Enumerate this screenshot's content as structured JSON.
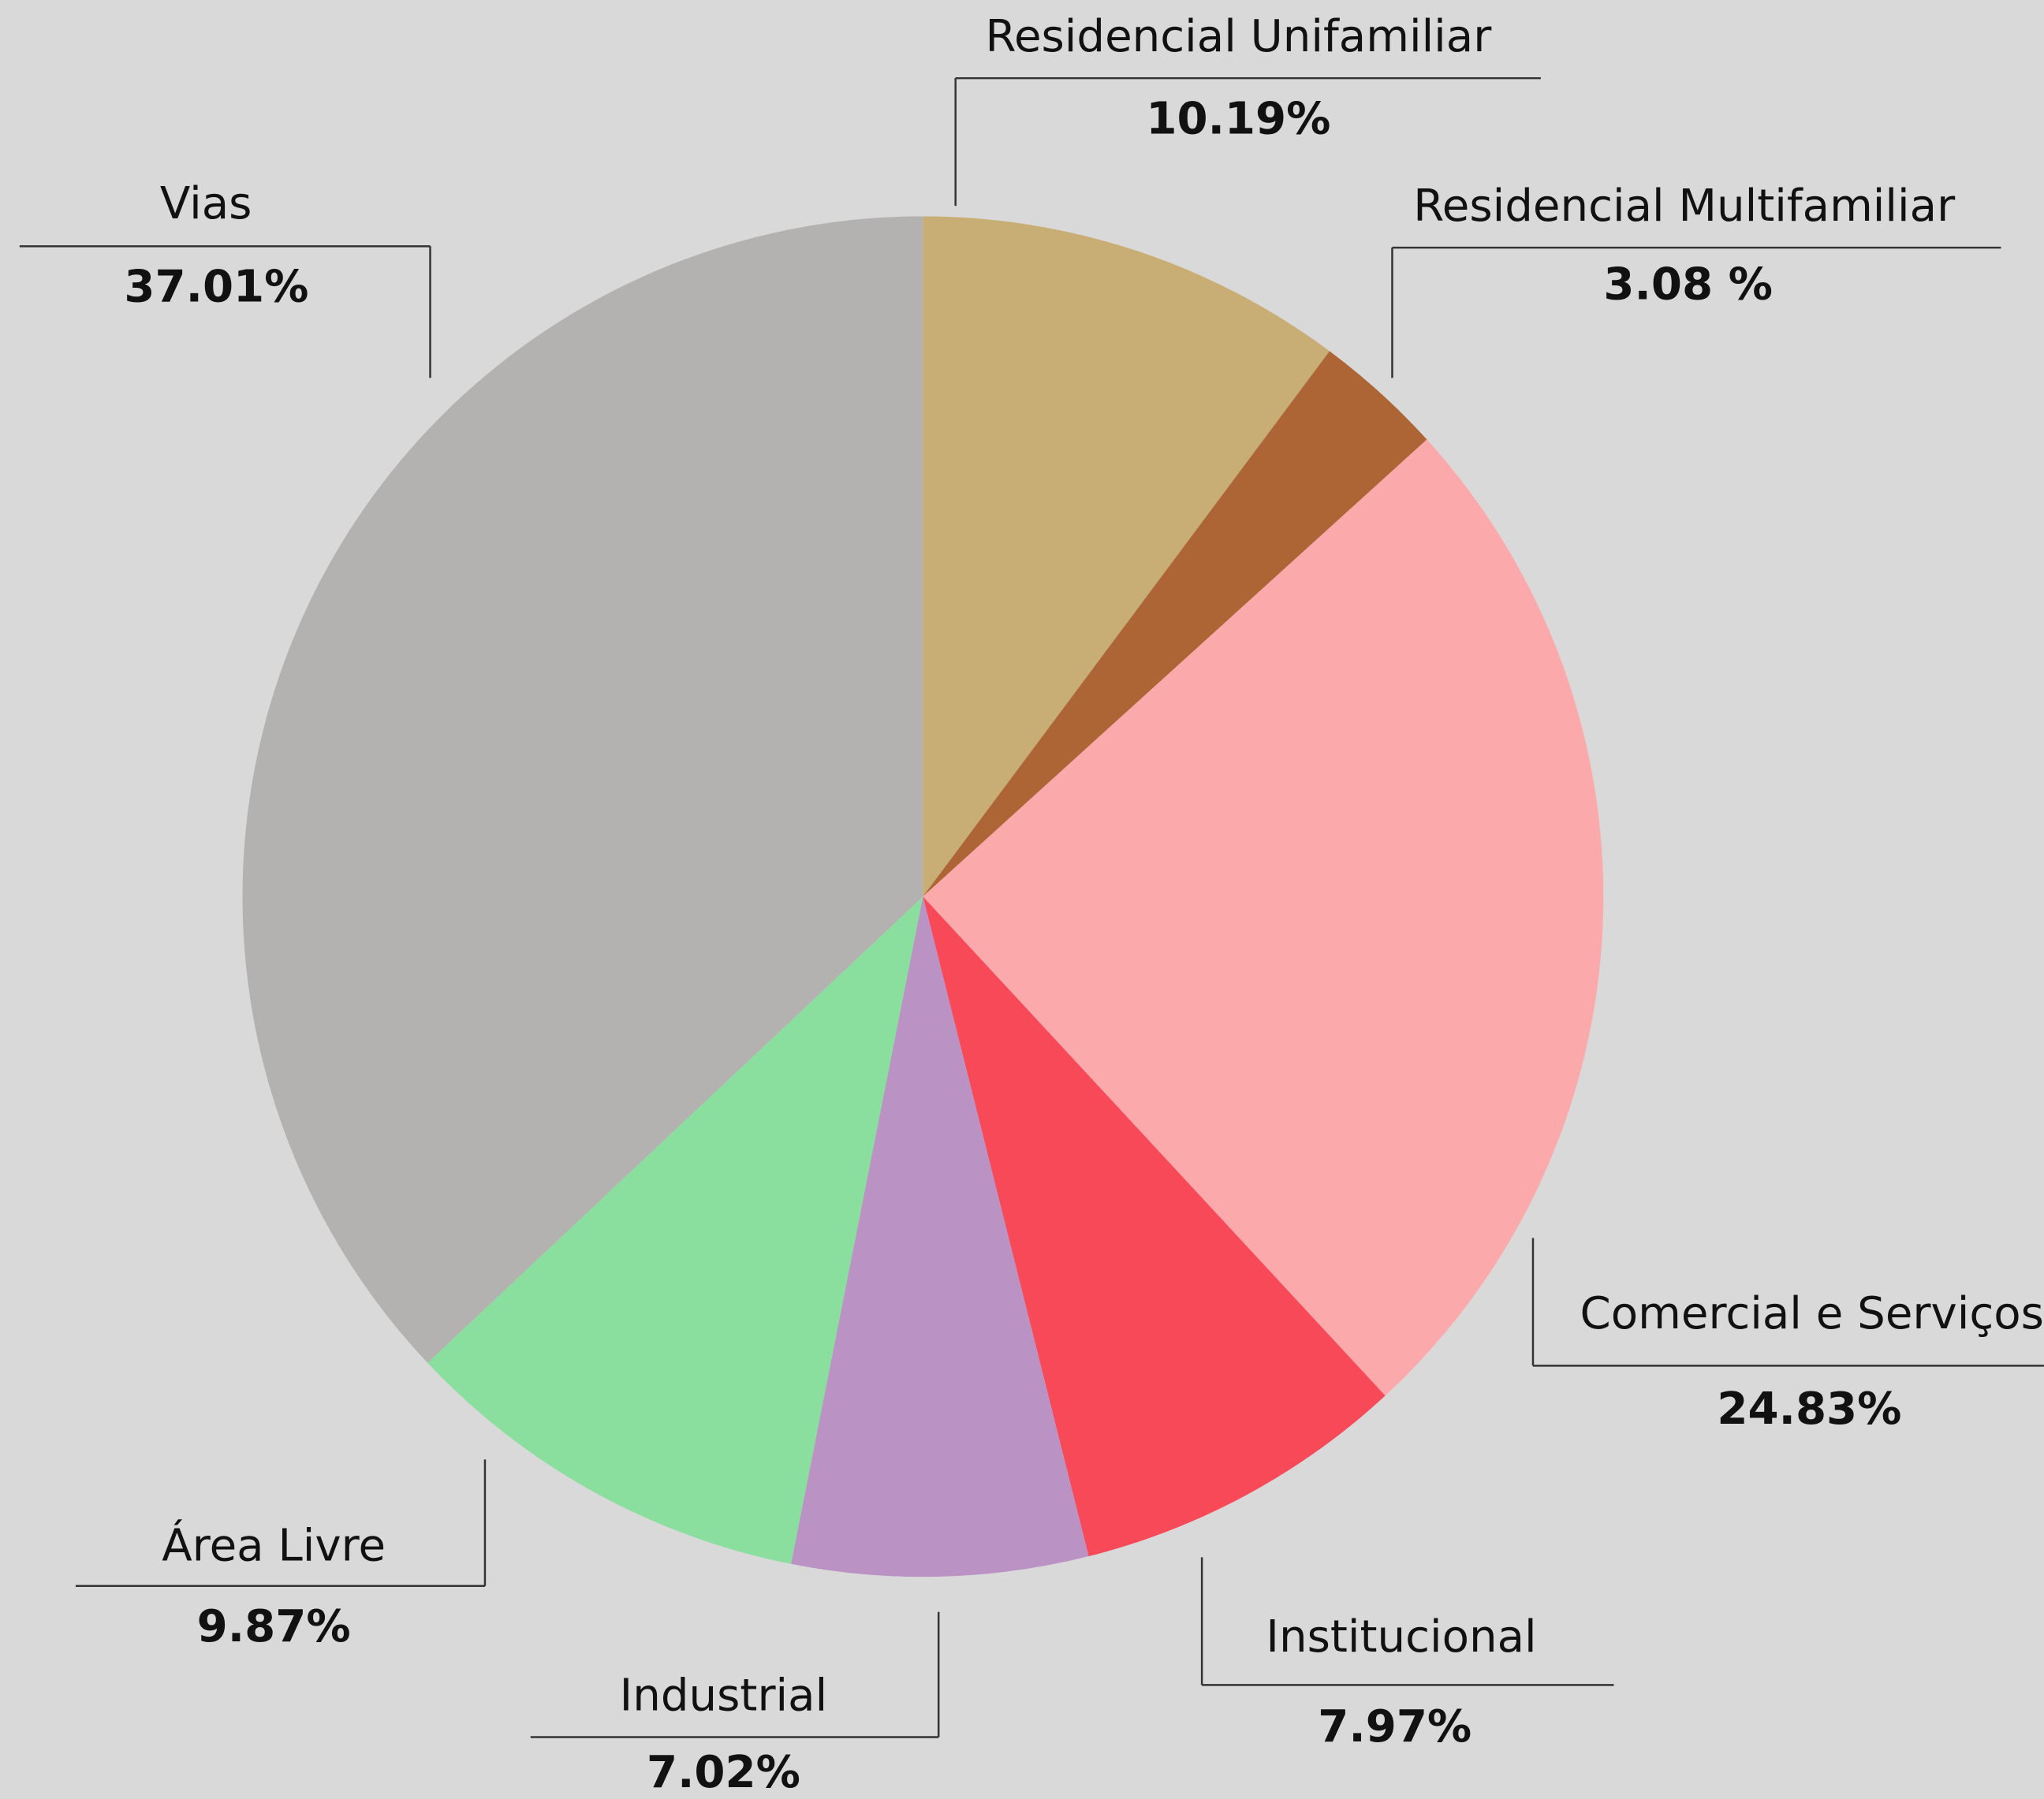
{
  "chart_data": {
    "type": "pie",
    "categories": [
      "Residencial Unifamiliar",
      "Residencial Multifamiliar",
      "Comercial e Serviços",
      "Institucional",
      "Industrial",
      "Área Livre",
      "Vias"
    ],
    "values": [
      10.19,
      3.08,
      24.83,
      7.97,
      7.02,
      9.87,
      37.01
    ],
    "value_labels": [
      "10.19%",
      "3.08 %",
      "24.83%",
      "7.97%",
      "7.02%",
      "9.87%",
      "37.01%"
    ],
    "colors": [
      "#c8ae75",
      "#ad6535",
      "#fca9ab",
      "#f84959",
      "#ba92c4",
      "#8ade9e",
      "#b4b1b1"
    ]
  }
}
